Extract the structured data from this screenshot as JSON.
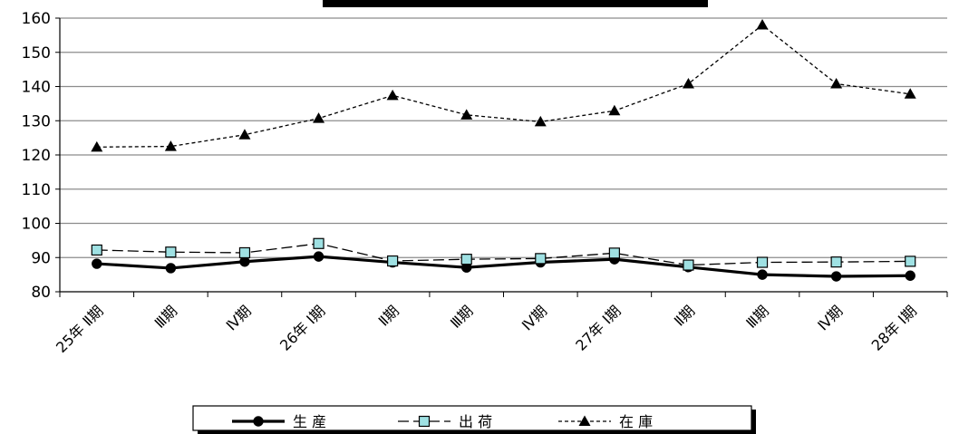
{
  "chart_data": {
    "type": "line",
    "title": "",
    "xlabel": "",
    "ylabel": "",
    "ylim": [
      80,
      160
    ],
    "yticks": [
      "80",
      "90",
      "100",
      "110",
      "120",
      "130",
      "140",
      "150",
      "160"
    ],
    "grid": true,
    "legend_position": "bottom",
    "categories": [
      "25年 Ⅱ期",
      "Ⅲ期",
      "Ⅳ期",
      "26年 Ⅰ期",
      "Ⅱ期",
      "Ⅲ期",
      "Ⅳ期",
      "27年 Ⅰ期",
      "Ⅱ期",
      "Ⅲ期",
      "Ⅳ期",
      "28年 Ⅰ期"
    ],
    "series": [
      {
        "name": "生 産",
        "values": [
          88.2,
          86.9,
          88.8,
          90.3,
          88.6,
          87.1,
          88.6,
          89.5,
          87.2,
          85.0,
          84.5,
          84.7
        ],
        "color": "#000000",
        "marker": "circle",
        "line": "solid"
      },
      {
        "name": "出 荷",
        "values": [
          92.2,
          91.6,
          91.4,
          94.1,
          89.0,
          89.5,
          89.7,
          91.3,
          87.8,
          88.6,
          88.7,
          88.9
        ],
        "color": "#000000",
        "marker_fill": "#9fe1e3",
        "marker": "square",
        "line": "dashed"
      },
      {
        "name": "在 庫",
        "values": [
          122.3,
          122.5,
          125.9,
          130.7,
          137.4,
          131.7,
          129.7,
          132.9,
          140.8,
          158.0,
          140.8,
          137.8
        ],
        "color": "#000000",
        "marker": "triangle",
        "line": "dotted"
      }
    ]
  }
}
